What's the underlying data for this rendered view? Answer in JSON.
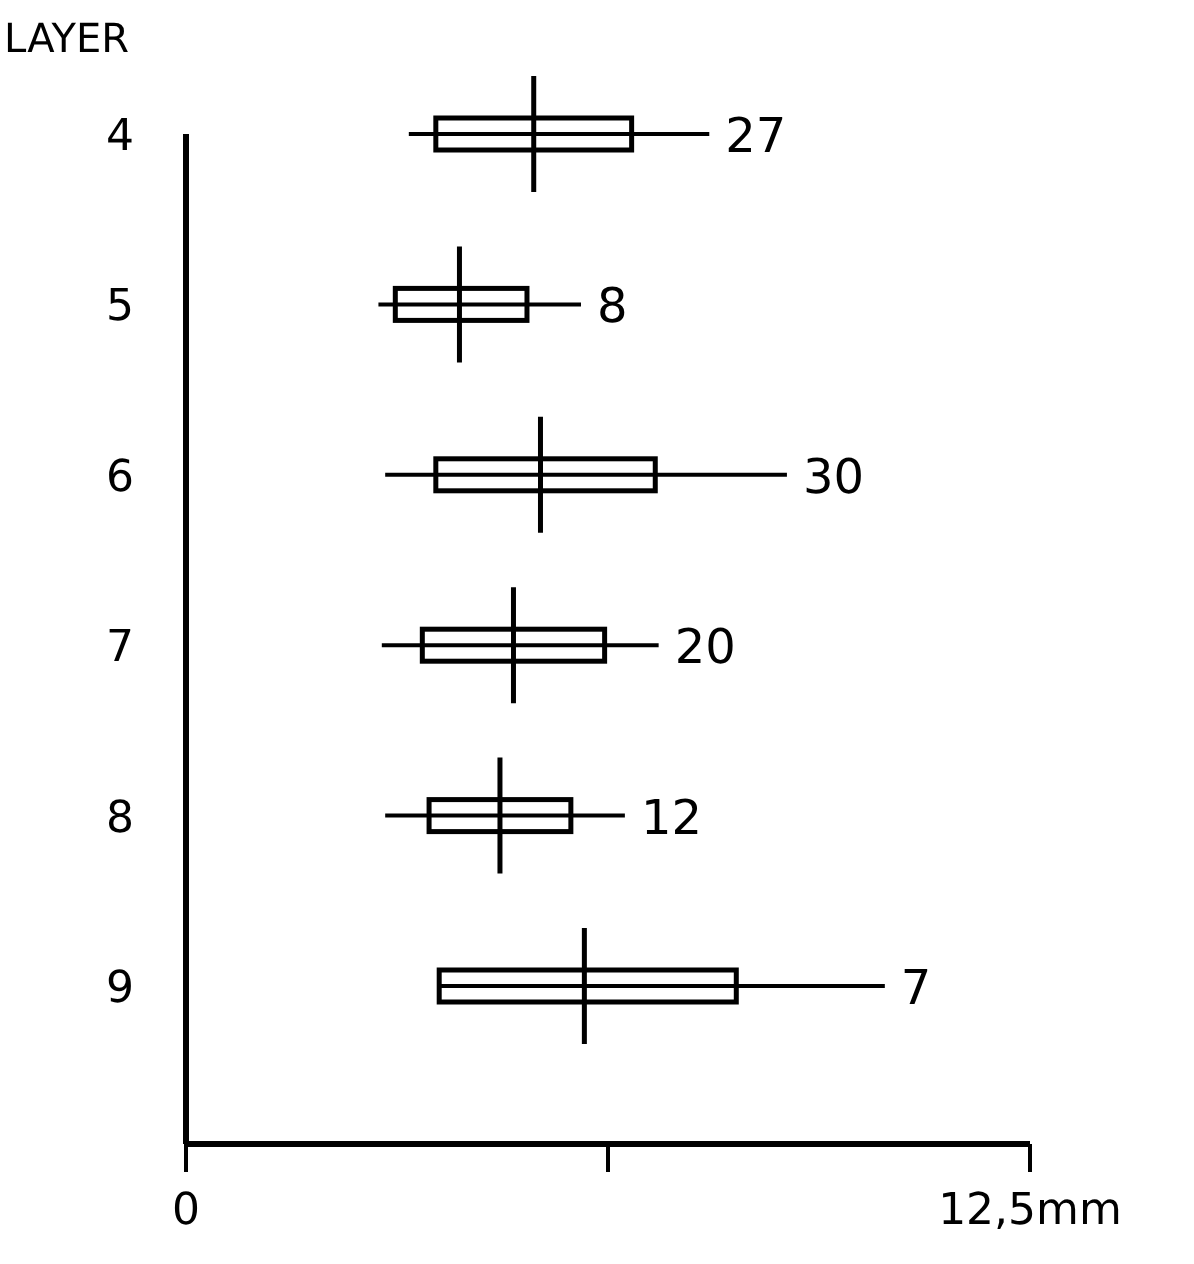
{
  "chart_data": {
    "type": "box",
    "orientation": "horizontal",
    "ylabel": "LAYER",
    "categories": [
      "4",
      "5",
      "6",
      "7",
      "8",
      "9"
    ],
    "boxes": [
      {
        "low": 3.3,
        "q1": 3.7,
        "median": 5.15,
        "q3": 6.6,
        "high": 7.75
      },
      {
        "low": 2.85,
        "q1": 3.1,
        "median": 4.05,
        "q3": 5.05,
        "high": 5.85
      },
      {
        "low": 2.95,
        "q1": 3.7,
        "median": 5.25,
        "q3": 6.95,
        "high": 8.9
      },
      {
        "low": 2.9,
        "q1": 3.5,
        "median": 4.85,
        "q3": 6.2,
        "high": 7.0
      },
      {
        "low": 2.95,
        "q1": 3.6,
        "median": 4.65,
        "q3": 5.7,
        "high": 6.5
      },
      {
        "low": 3.75,
        "q1": 3.75,
        "median": 5.9,
        "q3": 8.15,
        "high": 10.35
      }
    ],
    "xlim": [
      0,
      12.5
    ],
    "xticks": [
      0,
      {
        "value": 6.25,
        "label": null
      },
      {
        "value": 12.5,
        "label": "12,5mm"
      }
    ],
    "annotations": [
      {
        "text": "27",
        "x": 7.75,
        "y": "4"
      },
      {
        "text": "8",
        "x": 5.85,
        "y": "5"
      },
      {
        "text": "30",
        "x": 8.9,
        "y": "6"
      },
      {
        "text": "20",
        "x": 7.0,
        "y": "7"
      },
      {
        "text": "12",
        "x": 6.5,
        "y": "8"
      },
      {
        "text": "7",
        "x": 10.35,
        "y": "9"
      }
    ]
  }
}
